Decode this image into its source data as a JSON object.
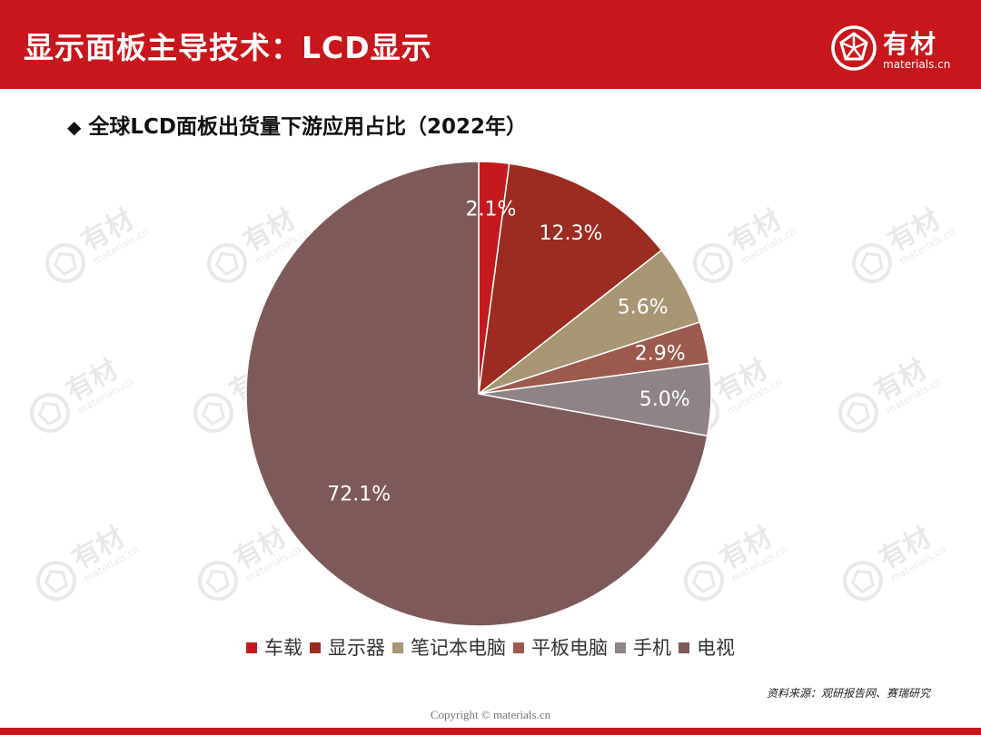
{
  "header": {
    "title": "显示面板主导技术：LCD显示",
    "logo_cn": "有材",
    "logo_en": "materials.cn"
  },
  "subtitle": {
    "bullet": "◆",
    "text": "全球LCD面板出货量下游应用占比（2022年）"
  },
  "chart_data": {
    "type": "pie",
    "title": "全球LCD面板出货量下游应用占比（2022年）",
    "start": "12 o'clock, clockwise",
    "slices": [
      {
        "name": "车载",
        "value": 2.1,
        "label": "2.1%",
        "color": "#c41a1f"
      },
      {
        "name": "显示器",
        "value": 12.3,
        "label": "12.3%",
        "color": "#9c2b22"
      },
      {
        "name": "笔记本电脑",
        "value": 5.6,
        "label": "5.6%",
        "color": "#a79574"
      },
      {
        "name": "平板电脑",
        "value": 2.9,
        "label": "2.9%",
        "color": "#9c5a4e"
      },
      {
        "name": "手机",
        "value": 5.0,
        "label": "5.0%",
        "color": "#8f8485"
      },
      {
        "name": "电视",
        "value": 72.1,
        "label": "72.1%",
        "color": "#7d5a59"
      }
    ],
    "legend_position": "bottom"
  },
  "watermark": {
    "cn": "有材",
    "en": "materials.cn"
  },
  "source": "资料来源：观研报告网、赛瑞研究",
  "copyright": "Copyright © materials.cn"
}
